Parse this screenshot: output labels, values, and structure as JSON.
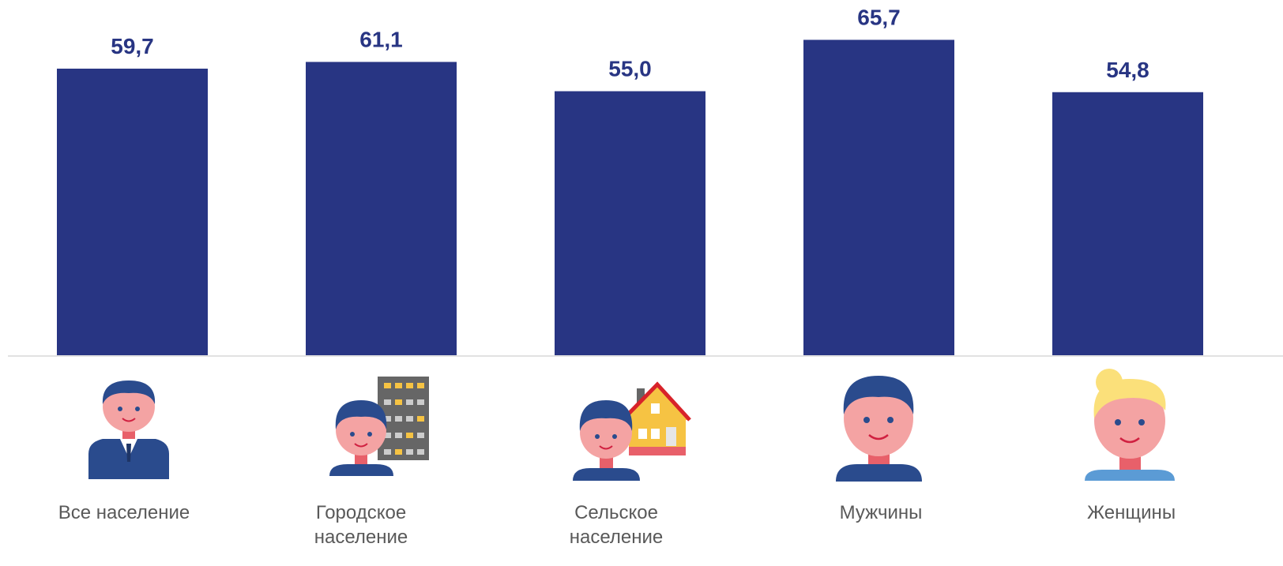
{
  "chart_data": {
    "type": "bar",
    "categories": [
      "Все население",
      "Городское население",
      "Сельское население",
      "Мужчины",
      "Женщины"
    ],
    "values": [
      59.7,
      61.1,
      55.0,
      65.7,
      54.8
    ],
    "value_labels": [
      "59,7",
      "61,1",
      "55,0",
      "65,7",
      "54,8"
    ],
    "color": "#283583",
    "ylim": [
      0,
      74
    ]
  }
}
